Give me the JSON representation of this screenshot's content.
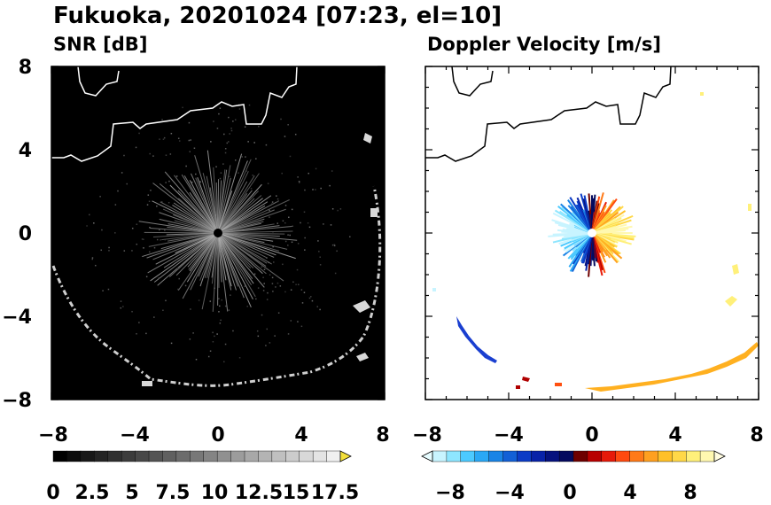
{
  "figure_title": "Fukuoka, 20201024 [07:23, el=10]",
  "chart_data": [
    {
      "type": "heatmap",
      "title": "SNR [dB]",
      "xlim": [
        -8,
        8
      ],
      "ylim": [
        -8,
        8
      ],
      "xticks": [
        "−8",
        "−4",
        "0",
        "4",
        "8"
      ],
      "yticks": [
        "8",
        "4",
        "0",
        "−4",
        "−8"
      ],
      "colorbar": {
        "range": [
          0,
          18.5
        ],
        "tick_labels": [
          "0",
          "2.5",
          "5",
          "7.5",
          "10",
          "12.5",
          "15",
          "17.5"
        ],
        "colors": [
          "#000000",
          "#0c0c0c",
          "#181818",
          "#242424",
          "#303030",
          "#3c3c3c",
          "#484848",
          "#545454",
          "#606060",
          "#6c6c6c",
          "#787878",
          "#848484",
          "#909090",
          "#9c9c9c",
          "#a8a8a8",
          "#b4b4b4",
          "#c0c0c0",
          "#cccccc",
          "#d8d8d8",
          "#e4e4e4",
          "#f0f0f0"
        ],
        "extend_color": "#f3df3a"
      },
      "background": "#000000",
      "features": [
        "radial echo cluster around radar site",
        "clutter ring at ~6–8 km",
        "coastline"
      ]
    },
    {
      "type": "heatmap",
      "title": "Doppler Velocity [m/s]",
      "xlim": [
        -8,
        8
      ],
      "ylim": [
        -8,
        8
      ],
      "xticks": [
        "−8",
        "−4",
        "0",
        "4",
        "8"
      ],
      "yticks": [
        "8",
        "4",
        "0",
        "−4",
        "−8"
      ],
      "colorbar": {
        "range": [
          -10,
          10
        ],
        "tick_labels": [
          "−8",
          "−4",
          "0",
          "4",
          "8"
        ],
        "colors": [
          "#c8f4ff",
          "#8ee6ff",
          "#4ccaff",
          "#2aa8f5",
          "#1a84e6",
          "#1360d6",
          "#0c3cc6",
          "#0822a8",
          "#06127e",
          "#050a5e",
          "#6e0000",
          "#b80000",
          "#e61a0a",
          "#ff4a10",
          "#ff7a18",
          "#ffa020",
          "#ffc028",
          "#ffd848",
          "#fff07a",
          "#fff8b0"
        ],
        "extend_low": "#e6fcff",
        "extend_high": "#fffce0"
      },
      "background": "#ffffff",
      "features": [
        "approaching (blue) west, receding (red/yellow) east",
        "coastline"
      ]
    }
  ]
}
